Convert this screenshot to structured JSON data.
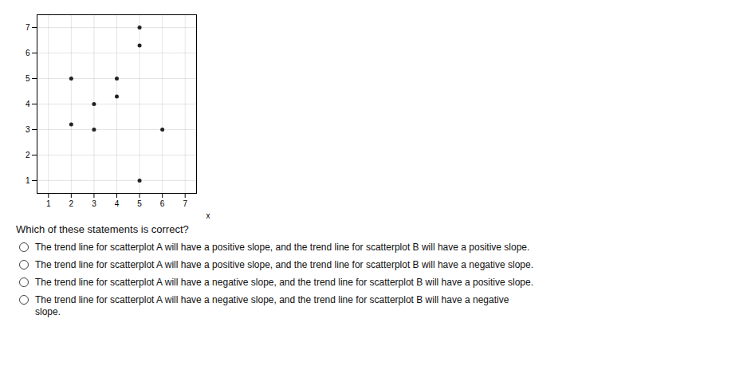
{
  "chart_data": {
    "type": "scatter",
    "x": [
      2,
      2,
      3,
      3,
      4,
      4,
      5,
      5,
      5,
      6
    ],
    "values": [
      5,
      3.2,
      4,
      3,
      5,
      4.3,
      7,
      6.3,
      1,
      3
    ],
    "xlabel": "x",
    "xlim": [
      0.5,
      7.5
    ],
    "ylim": [
      0.5,
      7.5
    ],
    "xticks": [
      1,
      2,
      3,
      4,
      5,
      6,
      7
    ],
    "yticks": [
      1,
      2,
      3,
      4,
      5,
      6,
      7
    ],
    "grid": true,
    "color": "#222222",
    "annotations": [
      "Which of these statements is correct?",
      "The trend line for scatterplot A will have a positive slope, and the trend line for scatterplot B will have a positive slope.",
      "The trend line for scatterplot A will have a positive slope, and the trend line for scatterplot B will have a negative slope.",
      "The trend line for scatterplot A will have a negative slope, and the trend line for scatterplot B will have a positive slope.",
      "The trend line for scatterplot A will have a negative slope, and the trend line for scatterplot B will have a negative\nslope."
    ]
  }
}
